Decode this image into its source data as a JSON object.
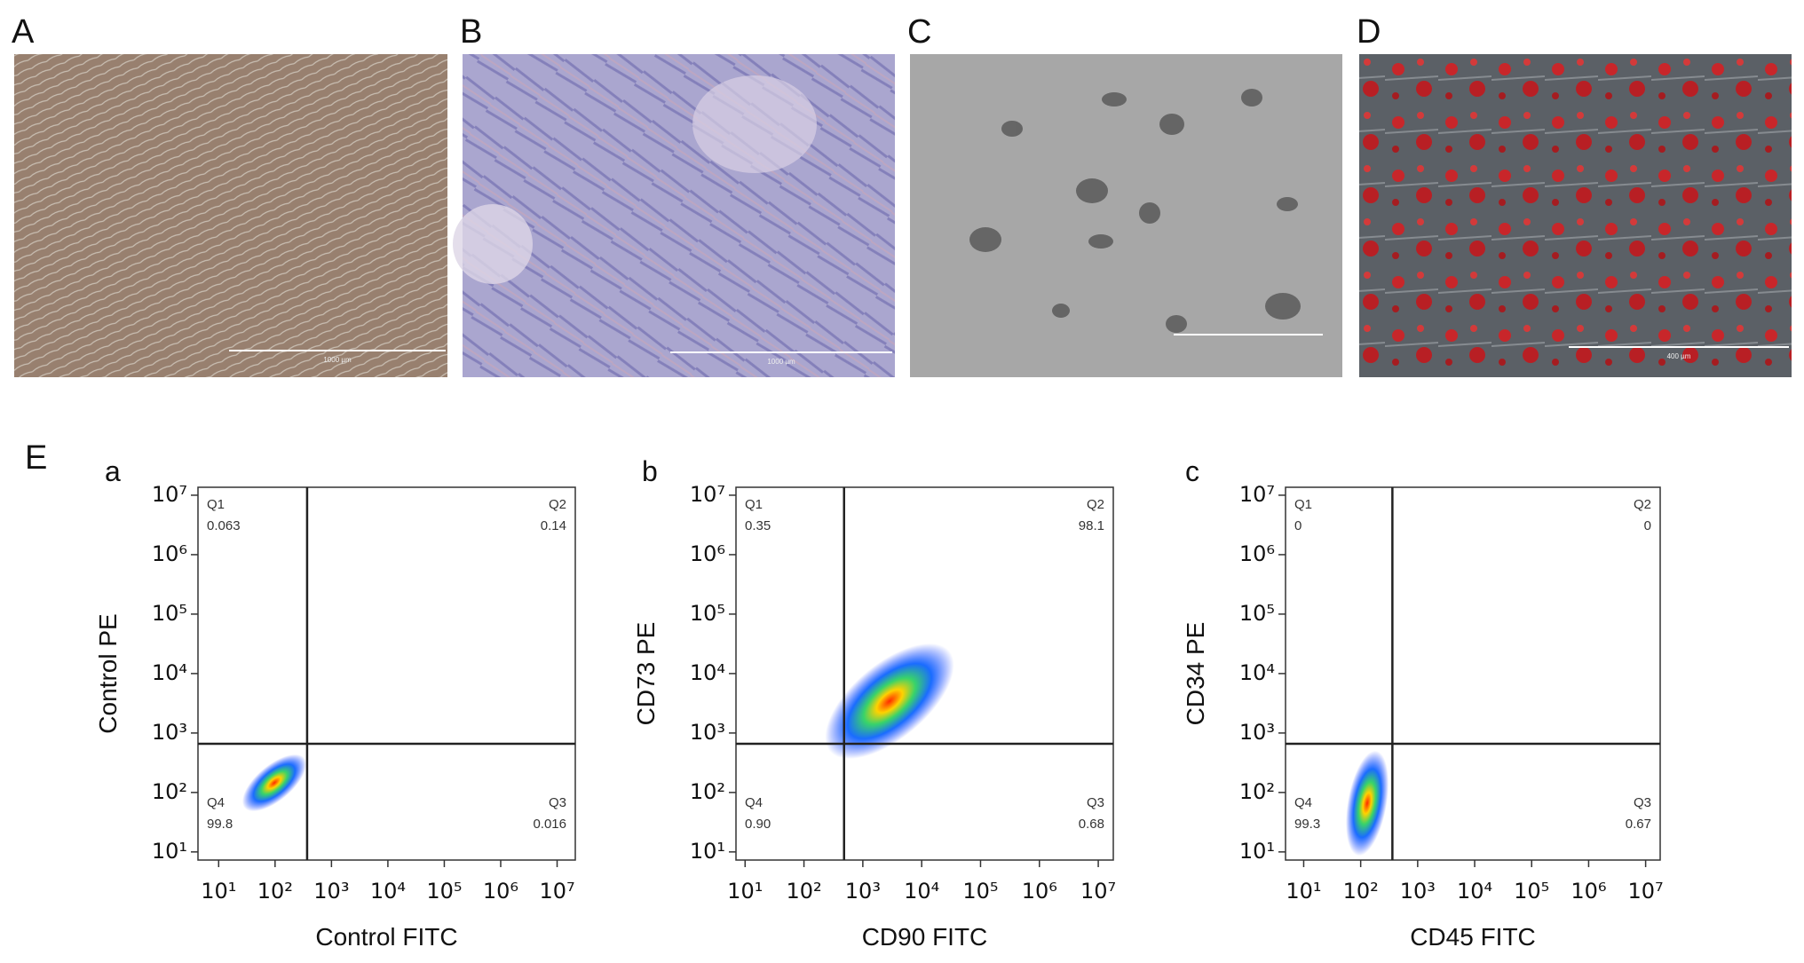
{
  "panels": [
    {
      "label": "A",
      "scale_bar": "1000 µm"
    },
    {
      "label": "B",
      "scale_bar": "1000 µm"
    },
    {
      "label": "C"
    },
    {
      "label": "D",
      "scale_bar": "400 µm"
    }
  ],
  "section_label": "E",
  "chart_data": [
    {
      "type": "scatter",
      "panel": "a",
      "x_label": "Control FITC",
      "y_label": "Control PE",
      "log_scale": true,
      "xlim": [
        4.3,
        21000000
      ],
      "ylim": [
        7.3,
        13600000
      ],
      "xticks": [
        {
          "value": 10,
          "label": "10¹"
        },
        {
          "value": 100,
          "label": "10²"
        },
        {
          "value": 1000,
          "label": "10³"
        },
        {
          "value": 10000,
          "label": "10⁴"
        },
        {
          "value": 100000,
          "label": "10⁵"
        },
        {
          "value": 1000000,
          "label": "10⁶"
        },
        {
          "value": 10000000,
          "label": "10⁷"
        }
      ],
      "yticks": [
        {
          "value": 10,
          "label": "10¹"
        },
        {
          "value": 100,
          "label": "10²"
        },
        {
          "value": 1000,
          "label": "10³"
        },
        {
          "value": 10000,
          "label": "10⁴"
        },
        {
          "value": 100000,
          "label": "10⁵"
        },
        {
          "value": 1000000,
          "label": "10⁶"
        },
        {
          "value": 10000000,
          "label": "10⁷"
        }
      ],
      "gates": {
        "x": 370,
        "y": 660
      },
      "quadrants": [
        "Q1",
        "Q2",
        "Q3",
        "Q4"
      ],
      "quadrant_values": [
        0.063,
        0.14,
        0.016,
        99.8
      ]
    },
    {
      "type": "scatter",
      "panel": "b",
      "x_label": "CD90 FITC",
      "y_label": "CD73 PE",
      "log_scale": true,
      "xlim": [
        7,
        18000000
      ],
      "ylim": [
        7.3,
        13600000
      ],
      "xticks": [
        {
          "value": 10,
          "label": "10¹"
        },
        {
          "value": 100,
          "label": "10²"
        },
        {
          "value": 1000,
          "label": "10³"
        },
        {
          "value": 10000,
          "label": "10⁴"
        },
        {
          "value": 100000,
          "label": "10⁵"
        },
        {
          "value": 1000000,
          "label": "10⁶"
        },
        {
          "value": 10000000,
          "label": "10⁷"
        }
      ],
      "yticks": [
        {
          "value": 10,
          "label": "10¹"
        },
        {
          "value": 100,
          "label": "10²"
        },
        {
          "value": 1000,
          "label": "10³"
        },
        {
          "value": 10000,
          "label": "10⁴"
        },
        {
          "value": 100000,
          "label": "10⁵"
        },
        {
          "value": 1000000,
          "label": "10⁶"
        },
        {
          "value": 10000000,
          "label": "10⁷"
        }
      ],
      "gates": {
        "x": 480,
        "y": 660
      },
      "quadrants": [
        "Q1",
        "Q2",
        "Q3",
        "Q4"
      ],
      "quadrant_values": [
        0.35,
        98.1,
        0.68,
        0.9
      ],
      "value_labels": [
        "0.35",
        "98.1",
        "0.68",
        "0.90"
      ]
    },
    {
      "type": "scatter",
      "panel": "c",
      "x_label": "CD45 FITC",
      "y_label": "CD34 PE",
      "log_scale": true,
      "xlim": [
        4.8,
        18000000
      ],
      "ylim": [
        7.3,
        13600000
      ],
      "xticks": [
        {
          "value": 10,
          "label": "10¹"
        },
        {
          "value": 100,
          "label": "10²"
        },
        {
          "value": 1000,
          "label": "10³"
        },
        {
          "value": 10000,
          "label": "10⁴"
        },
        {
          "value": 100000,
          "label": "10⁵"
        },
        {
          "value": 1000000,
          "label": "10⁶"
        },
        {
          "value": 10000000,
          "label": "10⁷"
        }
      ],
      "yticks": [
        {
          "value": 10,
          "label": "10¹"
        },
        {
          "value": 100,
          "label": "10²"
        },
        {
          "value": 1000,
          "label": "10³"
        },
        {
          "value": 10000,
          "label": "10⁴"
        },
        {
          "value": 100000,
          "label": "10⁵"
        },
        {
          "value": 1000000,
          "label": "10⁶"
        },
        {
          "value": 10000000,
          "label": "10⁷"
        }
      ],
      "gates": {
        "x": 360,
        "y": 660
      },
      "quadrants": [
        "Q1",
        "Q2",
        "Q3",
        "Q4"
      ],
      "quadrant_values": [
        0,
        0,
        0.67,
        99.3
      ]
    }
  ]
}
